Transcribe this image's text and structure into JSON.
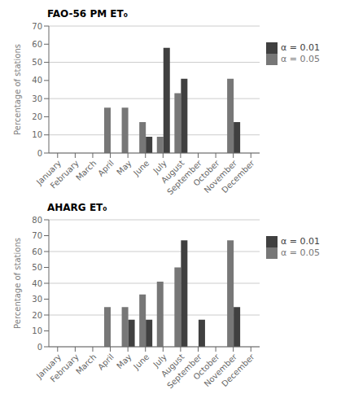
{
  "chart_data": [
    {
      "type": "bar",
      "title": "FAO-56 PM ET₀",
      "categories": [
        "January",
        "February",
        "March",
        "April",
        "May",
        "June",
        "July",
        "August",
        "September",
        "October",
        "November",
        "December"
      ],
      "series": [
        {
          "name": "α = 0.05",
          "color": "#777777",
          "values": [
            0,
            0,
            0,
            25,
            25,
            17,
            9,
            33,
            0,
            0,
            41,
            0
          ]
        },
        {
          "name": "α = 0.01",
          "color": "#404040",
          "values": [
            0,
            0,
            0,
            0,
            0,
            9,
            58,
            41,
            0,
            0,
            17,
            0
          ]
        }
      ],
      "ylabel": "Percentage of stations",
      "ylim": [
        0,
        70
      ],
      "yticks": [
        0,
        10,
        20,
        30,
        40,
        50,
        60,
        70
      ],
      "grid": true,
      "legend": "right"
    },
    {
      "type": "bar",
      "title": "AHARG ET₀",
      "categories": [
        "January",
        "February",
        "March",
        "April",
        "May",
        "June",
        "July",
        "August",
        "September",
        "October",
        "November",
        "December"
      ],
      "series": [
        {
          "name": "α = 0.05",
          "color": "#777777",
          "values": [
            0,
            0,
            0,
            25,
            25,
            33,
            41,
            50,
            0,
            0,
            67,
            0
          ]
        },
        {
          "name": "α = 0.01",
          "color": "#404040",
          "values": [
            0,
            0,
            0,
            0,
            17,
            17,
            0,
            67,
            17,
            0,
            25,
            0
          ]
        }
      ],
      "ylabel": "Percentage of stations",
      "ylim": [
        0,
        80
      ],
      "yticks": [
        0,
        10,
        20,
        30,
        40,
        50,
        60,
        70,
        80
      ],
      "grid": true,
      "legend": "right"
    }
  ]
}
